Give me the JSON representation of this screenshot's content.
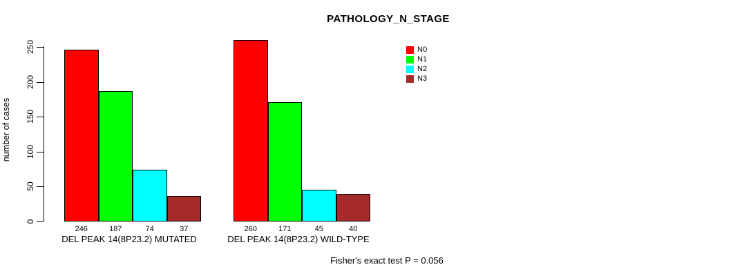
{
  "title": "PATHOLOGY_N_STAGE",
  "chart_data": {
    "type": "bar",
    "title": "PATHOLOGY_N_STAGE",
    "xlabel": "",
    "ylabel": "number of cases",
    "ylim": [
      0,
      260
    ],
    "yticks": [
      0,
      50,
      100,
      150,
      200,
      250
    ],
    "grid": false,
    "legend_position": "top-right",
    "series_names": [
      "N0",
      "N1",
      "N2",
      "N3"
    ],
    "series_colors": [
      "#FF0000",
      "#00FF00",
      "#00FFFF",
      "#A52A2A"
    ],
    "categories": [
      "DEL PEAK 14(8P23.2) MUTATED",
      "DEL PEAK 14(8P23.2) WILD-TYPE"
    ],
    "groups": [
      {
        "label": "DEL PEAK 14(8P23.2) MUTATED",
        "values": [
          246,
          187,
          74,
          37
        ]
      },
      {
        "label": "DEL PEAK 14(8P23.2) WILD-TYPE",
        "values": [
          260,
          171,
          45,
          40
        ]
      }
    ],
    "annotation": "Fisher's exact test P = 0.056"
  }
}
